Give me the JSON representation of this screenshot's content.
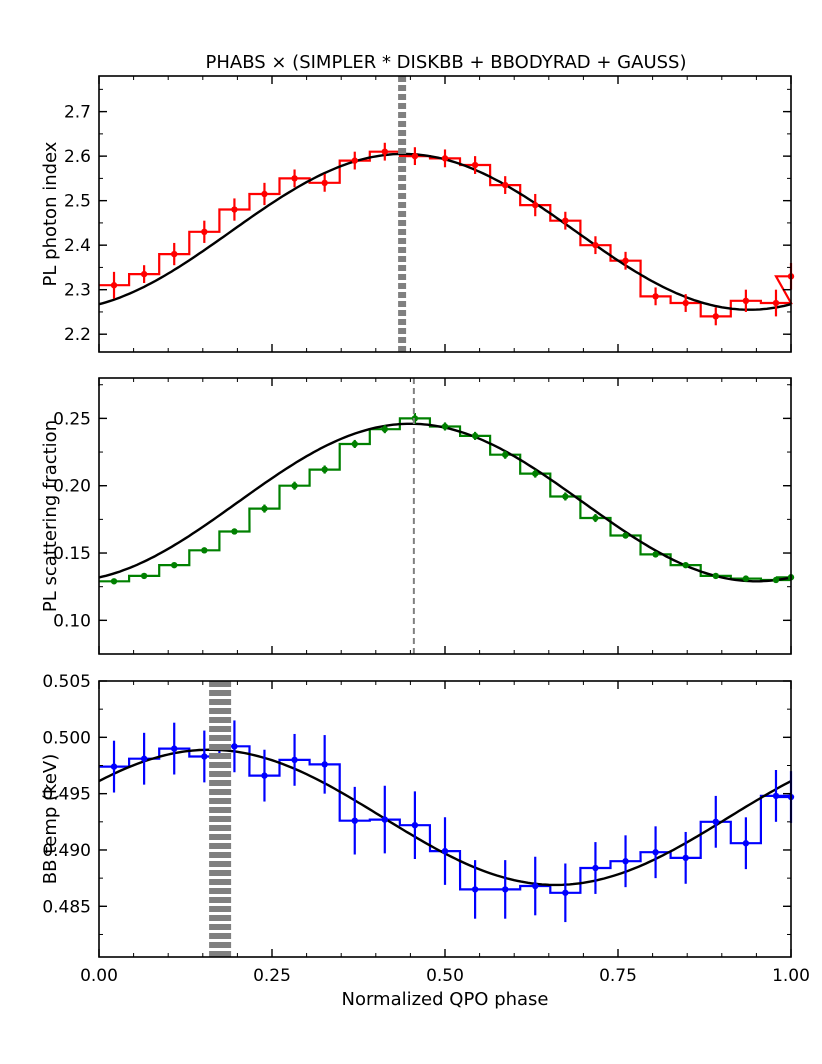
{
  "title": "PHABS × (SIMPLER * DISKBB + BBODYRAD + GAUSS)",
  "xlabel": "Normalized QPO phase",
  "colors": {
    "red": "#ff0000",
    "green": "#008000",
    "blue": "#0000ff",
    "fit": "#000000",
    "marker": "#808080"
  },
  "chart_data": [
    {
      "type": "line",
      "ylabel": "PL photon index",
      "xlim": [
        0.0,
        1.0
      ],
      "ylim": [
        2.16,
        2.78
      ],
      "yticks": [
        2.2,
        2.3,
        2.4,
        2.5,
        2.6,
        2.7
      ],
      "ytick_labels": [
        "2.2",
        "2.3",
        "2.4",
        "2.5",
        "2.6",
        "2.7"
      ],
      "xticks": [
        0.0,
        0.25,
        0.5,
        0.75,
        1.0
      ],
      "xtick_labels": [],
      "color": "#ff0000",
      "x": [
        0.0217,
        0.0652,
        0.1087,
        0.1522,
        0.1957,
        0.2391,
        0.2826,
        0.3261,
        0.3696,
        0.413,
        0.4565,
        0.5,
        0.5435,
        0.587,
        0.6304,
        0.6739,
        0.7174,
        0.7609,
        0.8043,
        0.8478,
        0.8913,
        0.9348,
        0.9783
      ],
      "y": [
        2.31,
        2.335,
        2.38,
        2.43,
        2.48,
        2.515,
        2.55,
        2.54,
        2.59,
        2.61,
        2.6,
        2.595,
        2.58,
        2.535,
        2.49,
        2.455,
        2.4,
        2.365,
        2.285,
        2.27,
        2.24,
        2.275,
        2.27
      ],
      "yerr": [
        0.03,
        0.02,
        0.025,
        0.025,
        0.025,
        0.025,
        0.02,
        0.02,
        0.02,
        0.02,
        0.02,
        0.02,
        0.02,
        0.02,
        0.025,
        0.02,
        0.02,
        0.02,
        0.02,
        0.02,
        0.02,
        0.025,
        0.03
      ],
      "fit": {
        "mean": 2.43,
        "amplitude": 0.175,
        "peak_phase": 0.44
      },
      "last_point": {
        "x": 1.0,
        "y": 2.33,
        "yerr": 0.03
      },
      "marker_line": {
        "x": 0.438,
        "style": "thick-dotted"
      }
    },
    {
      "type": "line",
      "ylabel": "PL scattering fraction",
      "xlim": [
        0.0,
        1.0
      ],
      "ylim": [
        0.075,
        0.28
      ],
      "yticks": [
        0.1,
        0.15,
        0.2,
        0.25
      ],
      "ytick_labels": [
        "0.10",
        "0.15",
        "0.20",
        "0.25"
      ],
      "xticks": [
        0.0,
        0.25,
        0.5,
        0.75,
        1.0
      ],
      "xtick_labels": [],
      "color": "#008000",
      "x": [
        0.0217,
        0.0652,
        0.1087,
        0.1522,
        0.1957,
        0.2391,
        0.2826,
        0.3261,
        0.3696,
        0.413,
        0.4565,
        0.5,
        0.5435,
        0.587,
        0.6304,
        0.6739,
        0.7174,
        0.7609,
        0.8043,
        0.8478,
        0.8913,
        0.9348,
        0.9783
      ],
      "y": [
        0.129,
        0.133,
        0.141,
        0.152,
        0.166,
        0.183,
        0.2,
        0.212,
        0.231,
        0.242,
        0.25,
        0.244,
        0.237,
        0.223,
        0.209,
        0.192,
        0.176,
        0.163,
        0.149,
        0.141,
        0.133,
        0.131,
        0.13
      ],
      "yerr": [
        0.002,
        0.002,
        0.002,
        0.002,
        0.002,
        0.003,
        0.003,
        0.003,
        0.003,
        0.003,
        0.004,
        0.003,
        0.003,
        0.003,
        0.003,
        0.003,
        0.003,
        0.002,
        0.002,
        0.002,
        0.002,
        0.002,
        0.002
      ],
      "fit": {
        "mean": 0.1875,
        "amplitude": 0.0585,
        "peak_phase": 0.45
      },
      "last_point": {
        "x": 1.0,
        "y": 0.132,
        "yerr": 0.002
      },
      "marker_line": {
        "x": 0.455,
        "style": "thin-dashed"
      }
    },
    {
      "type": "line",
      "ylabel": "BB temp (keV)",
      "xlim": [
        0.0,
        1.0
      ],
      "ylim": [
        0.4805,
        0.505
      ],
      "yticks": [
        0.485,
        0.49,
        0.495,
        0.5,
        0.505
      ],
      "ytick_labels": [
        "0.485",
        "0.490",
        "0.495",
        "0.500",
        "0.505"
      ],
      "xticks": [
        0.0,
        0.25,
        0.5,
        0.75,
        1.0
      ],
      "xtick_labels": [
        "0.00",
        "0.25",
        "0.50",
        "0.75",
        "1.00"
      ],
      "color": "#0000ff",
      "x": [
        0.0217,
        0.0652,
        0.1087,
        0.1522,
        0.1957,
        0.2391,
        0.2826,
        0.3261,
        0.3696,
        0.413,
        0.4565,
        0.5,
        0.5435,
        0.587,
        0.6304,
        0.6739,
        0.7174,
        0.7609,
        0.8043,
        0.8478,
        0.8913,
        0.9348,
        0.9783
      ],
      "y": [
        0.4974,
        0.4981,
        0.499,
        0.4983,
        0.4992,
        0.4966,
        0.498,
        0.4976,
        0.4926,
        0.4927,
        0.4922,
        0.4899,
        0.4865,
        0.4865,
        0.4868,
        0.4862,
        0.4884,
        0.489,
        0.4898,
        0.4893,
        0.4925,
        0.4906,
        0.4948
      ],
      "yerr": [
        0.0023,
        0.0023,
        0.0023,
        0.0023,
        0.0023,
        0.0023,
        0.0023,
        0.0026,
        0.003,
        0.003,
        0.003,
        0.003,
        0.0026,
        0.0026,
        0.0026,
        0.0026,
        0.0023,
        0.0023,
        0.0023,
        0.0023,
        0.0023,
        0.0023,
        0.0023
      ],
      "fit": {
        "mean": 0.4929,
        "amplitude": 0.006,
        "peak_phase": 0.16
      },
      "last_point": {
        "x": 1.0,
        "y": 0.4947,
        "yerr": 0.0023
      },
      "marker_line": {
        "x": 0.175,
        "style": "thick-dotted"
      }
    }
  ]
}
